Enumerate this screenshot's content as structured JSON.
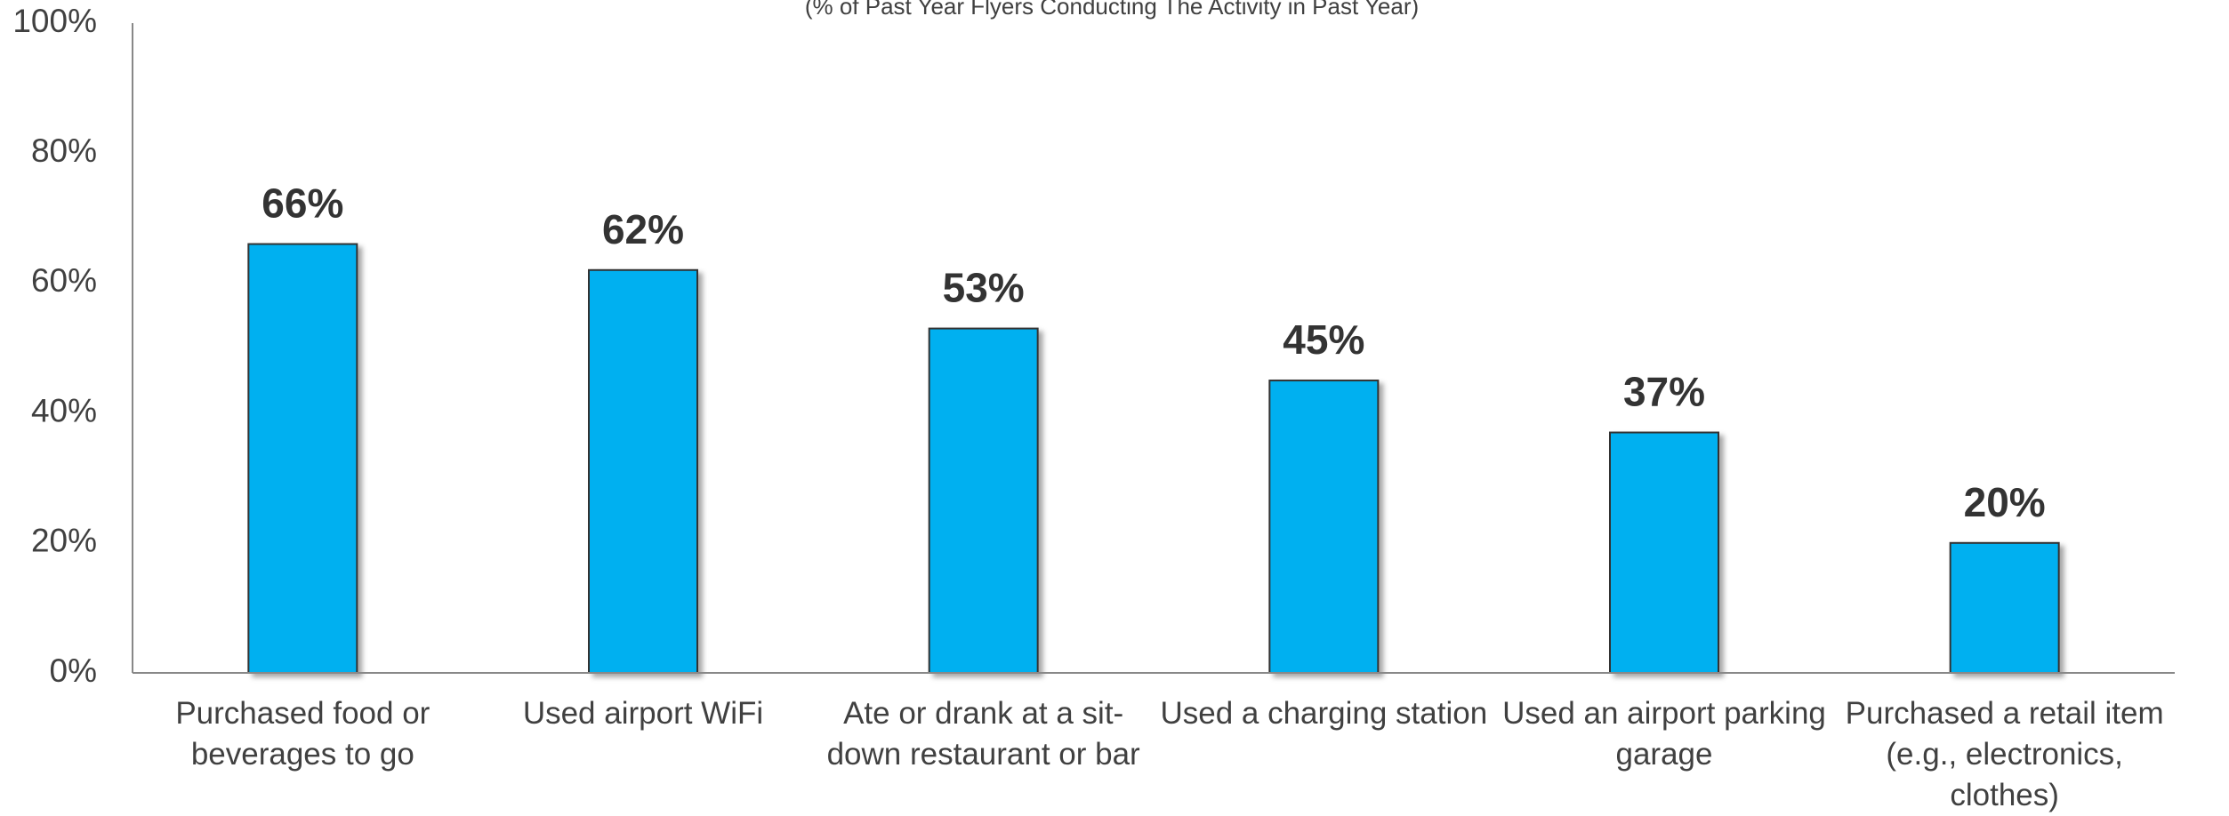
{
  "chart_data": {
    "type": "bar",
    "subtitle": "(% of Past Year Flyers Conducting The Activity in Past Year)",
    "categories": [
      "Purchased food or beverages to go",
      "Used airport WiFi",
      "Ate or drank at a sit-down restaurant or bar",
      "Used a charging station",
      "Used an airport parking garage",
      "Purchased a retail item (e.g., electronics, clothes)"
    ],
    "values": [
      66,
      62,
      53,
      45,
      37,
      20
    ],
    "value_labels": [
      "66%",
      "62%",
      "53%",
      "45%",
      "37%",
      "20%"
    ],
    "color": "#00b0f0",
    "ylim": [
      0,
      100
    ],
    "yticks": [
      {
        "value": 0,
        "label": "0%"
      },
      {
        "value": 20,
        "label": "20%"
      },
      {
        "value": 40,
        "label": "40%"
      },
      {
        "value": 60,
        "label": "60%"
      },
      {
        "value": 80,
        "label": "80%"
      },
      {
        "value": 100,
        "label": "100%"
      }
    ],
    "grid": false
  }
}
